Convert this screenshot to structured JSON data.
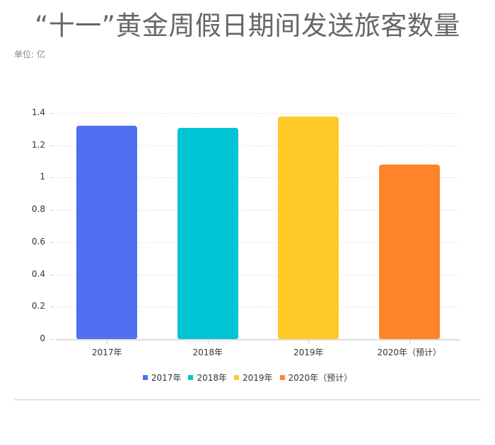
{
  "header": {
    "title": "“十一”黄金周假日期间发送旅客数量",
    "unit": "单位: 亿"
  },
  "chart_data": {
    "type": "bar",
    "title": "“十一”黄金周假日期间发送旅客数量",
    "subtitle": "单位: 亿",
    "categories": [
      "2017年",
      "2018年",
      "2019年",
      "2020年（预计）"
    ],
    "values": [
      1.32,
      1.31,
      1.38,
      1.08
    ],
    "colors": [
      "#4E70F0",
      "#00C4D4",
      "#FFCA28",
      "#FF832B"
    ],
    "xlabel": "",
    "ylabel": "",
    "ylim": [
      0,
      1.4
    ],
    "yticks": [
      "0",
      "0.2",
      "0.4",
      "0.6",
      "0.8",
      "1",
      "1.2",
      "1.4"
    ],
    "grid": true,
    "legend_position": "bottom",
    "legend": [
      "2017年",
      "2018年",
      "2019年",
      "2020年（预计）"
    ]
  }
}
